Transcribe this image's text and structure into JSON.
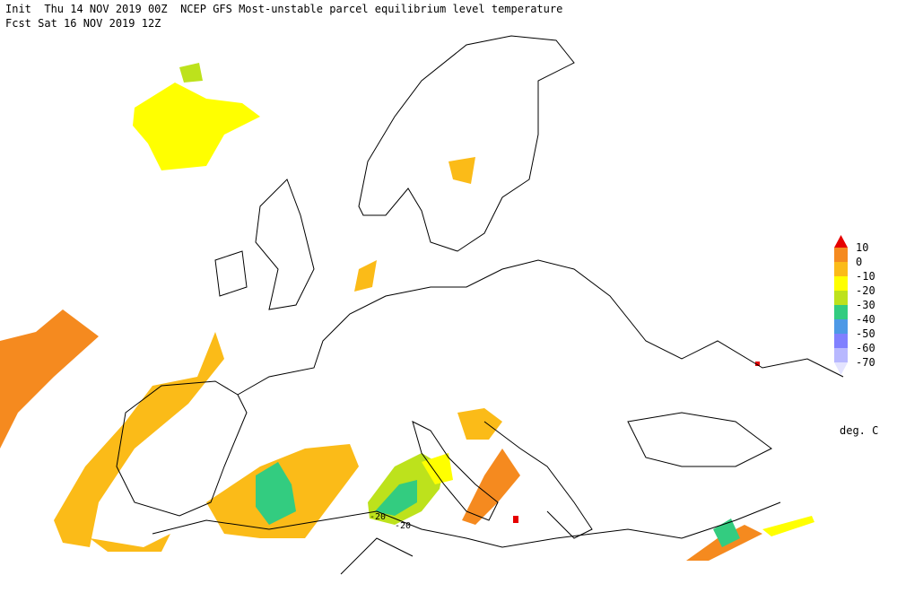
{
  "header": {
    "line1": "Init  Thu 14 NOV 2019 00Z  NCEP GFS Most-unstable parcel equilibrium level temperature",
    "line2": "Fcst Sat 16 NOV 2019 12Z"
  },
  "legend": {
    "levels": [
      10,
      0,
      -10,
      -20,
      -30,
      -40,
      -50,
      -60,
      -70
    ],
    "colors": [
      "#e60000",
      "#f58a1f",
      "#fbbb18",
      "#ffff00",
      "#bde21c",
      "#33cc80",
      "#4d99e6",
      "#8080ff",
      "#b8b8ff",
      "#e4e4ff"
    ],
    "unit": "deg. C"
  },
  "contour_labels": [
    "-20",
    "-20"
  ]
}
